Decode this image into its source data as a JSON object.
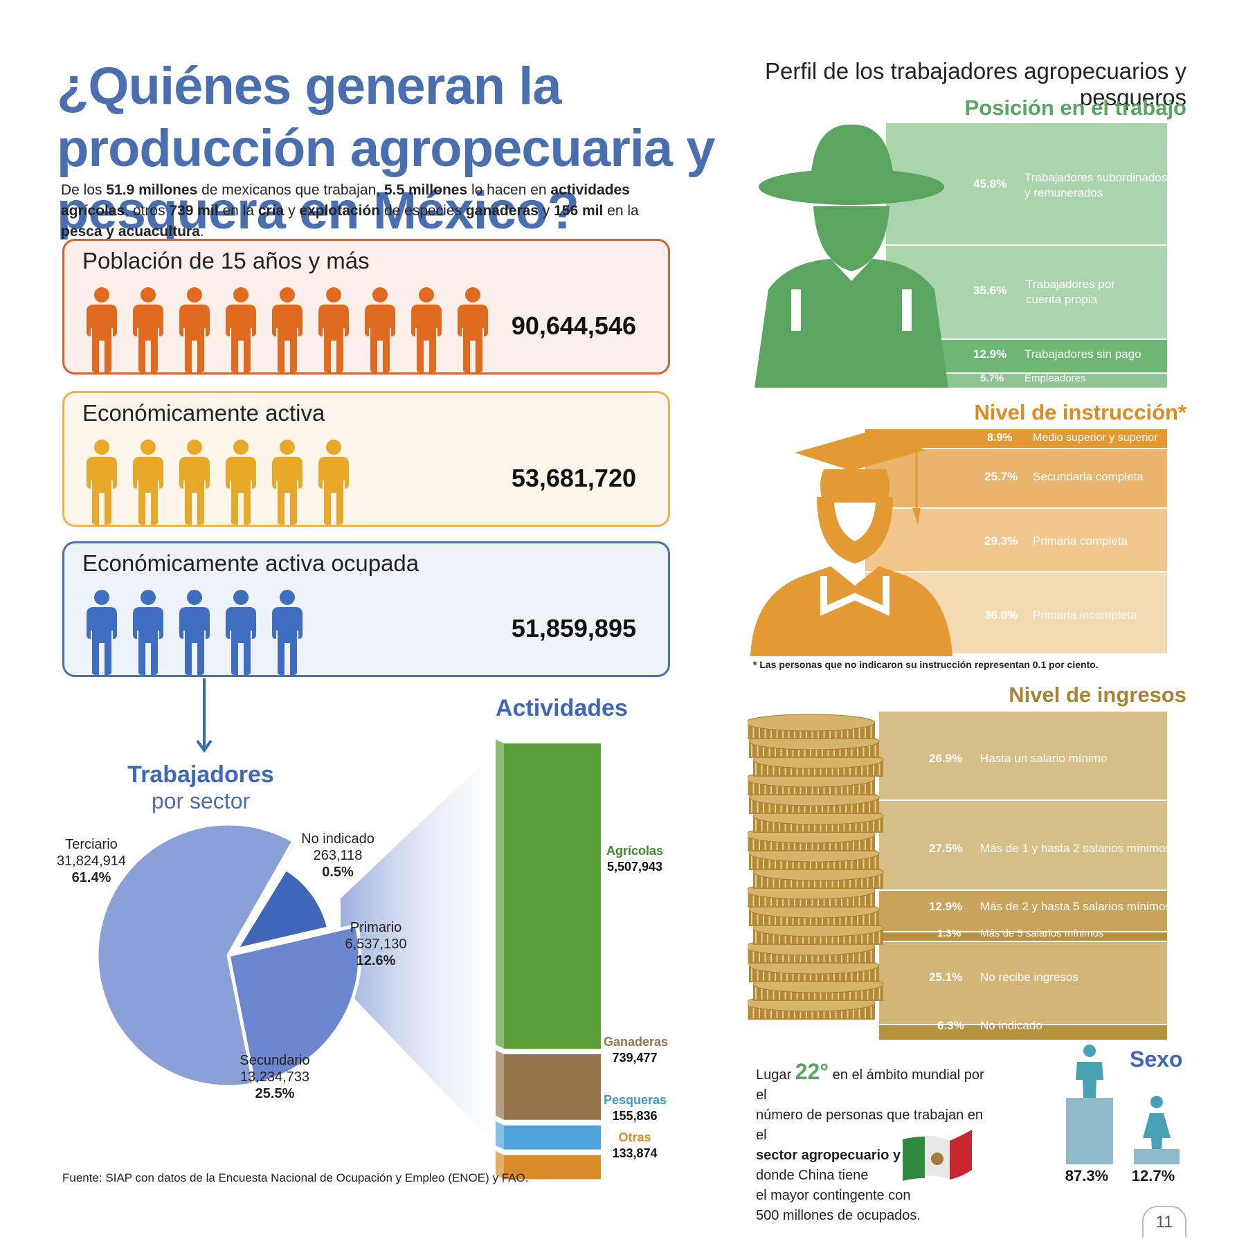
{
  "title": "¿Quiénes generan la producción agropecuaria y pesquera en México?",
  "intro": {
    "p1": "De los ",
    "b1": "51.9 millones",
    "p2": " de mexicanos que trabajan, ",
    "b2": "5.5 millones",
    "p3": " lo hacen en ",
    "b3": "actividades agrícolas",
    "p4": ", otros ",
    "b4": "739 mil",
    "p5": " en la ",
    "b5": "cría",
    "p6": " y ",
    "b6": "explotación",
    "p7": " de especies ",
    "b7": "ganaderas",
    "p8": " y ",
    "b8": "156 mil",
    "p9": " en la ",
    "b9": "pesca y acuacultura",
    "p10": "."
  },
  "population": [
    {
      "label": "Población de 15 años y más",
      "value": "90,644,546",
      "icons": 9,
      "color": "#e06a20"
    },
    {
      "label": "Económicamente activa",
      "value": "53,681,720",
      "icons": 6,
      "color": "#e8a92a"
    },
    {
      "label": "Económicamente activa ocupada",
      "value": "51,859,895",
      "icons": 5,
      "color": "#3f6dbf"
    }
  ],
  "sector_title": {
    "line1": "Trabajadores",
    "line2": "por sector"
  },
  "activities_title": "Actividades",
  "chart_data": [
    {
      "type": "pie",
      "title": "Trabajadores por sector",
      "categories": [
        "Terciario",
        "Secundario",
        "Primario",
        "No indicado"
      ],
      "values": [
        31824914,
        13234733,
        6537130,
        263118
      ],
      "value_labels": [
        "31,824,914",
        "13,234,733",
        "6,537,130",
        "263,118"
      ],
      "percent_labels": [
        "61.4%",
        "25.5%",
        "12.6%",
        "0.5%"
      ],
      "colors": [
        "#8aa0d6",
        "#6b86cf",
        "#3f66b8",
        "#c9d3ec"
      ]
    },
    {
      "type": "bar",
      "title": "Actividades",
      "categories": [
        "Agrícolas",
        "Ganaderas",
        "Pesqueras",
        "Otras"
      ],
      "values": [
        5507943,
        739477,
        155836,
        133874
      ],
      "value_labels": [
        "5,507,943",
        "739,477",
        "155,836",
        "133,874"
      ],
      "colors": [
        "#5a9e3a",
        "#94734a",
        "#4fa3d8",
        "#d98c2a"
      ]
    },
    {
      "type": "bar",
      "title": "Posición en el trabajo",
      "categories": [
        "Trabajadores subordinados y remunerados",
        "Trabajadores por cuenta propia",
        "Trabajadores sin pago",
        "Empleadores"
      ],
      "values": [
        45.8,
        35.6,
        12.9,
        5.7
      ],
      "percent_labels": [
        "45.8%",
        "35.6%",
        "12.9%",
        "5.7%"
      ]
    },
    {
      "type": "bar",
      "title": "Nivel de instrucción*",
      "categories": [
        "Medio superior y superior",
        "Secundaria completa",
        "Primaria completa",
        "Primaria incompleta"
      ],
      "values": [
        8.9,
        25.7,
        29.3,
        36.0
      ],
      "percent_labels": [
        "8.9%",
        "25.7%",
        "29.3%",
        "36.0%"
      ]
    },
    {
      "type": "bar",
      "title": "Nivel de ingresos",
      "categories": [
        "Hasta un salario mínimo",
        "Más de 1 y hasta 2 salarios mínimos",
        "Más de 2 y hasta 5 salarios mínimos",
        "Más de 5 salarios mínimos",
        "No recibe ingresos",
        "No indicado"
      ],
      "values": [
        26.9,
        27.5,
        12.9,
        1.3,
        25.1,
        6.3
      ],
      "percent_labels": [
        "26.9%",
        "27.5%",
        "12.9%",
        "1.3%",
        "25.1%",
        "6.3%"
      ]
    },
    {
      "type": "bar",
      "title": "Sexo",
      "categories": [
        "Hombres",
        "Mujeres"
      ],
      "values": [
        87.3,
        12.7
      ],
      "percent_labels": [
        "87.3%",
        "12.7%"
      ]
    }
  ],
  "right": {
    "perfil_title": "Perfil de los trabajadores agropecuarios y pesqueros",
    "posicion_title": "Posición en el trabajo",
    "posicion_line1": "Trabajadores subordinados",
    "posicion_line2": "y remunerados",
    "cuenta_line1": "Trabajadores por",
    "cuenta_line2": "cuenta propia",
    "instruccion_title": "Nivel de instrucción*",
    "instruccion_note": "* Las personas que no indicaron su instrucción representan 0.1 por ciento.",
    "ingresos_title": "Nivel de ingresos",
    "sexo_title": "Sexo",
    "colors": {
      "green": "#5aa660",
      "orange": "#e39a32",
      "gold": "#c9a35a"
    }
  },
  "lugar": {
    "t1": "Lugar ",
    "num": "22°",
    "t2": " en el ámbito mundial por el",
    "t3": "número de personas que trabajan en el",
    "b1": "sector agropecuario y pesquero",
    "t4": ",",
    "t5": "donde China tiene",
    "t6": "el mayor contingente con",
    "t7": "500 millones de ocupados."
  },
  "source": "Fuente: SIAP con datos de la Encuesta Nacional de Ocupación y Empleo (ENOE) y FAO.",
  "page_number": "11"
}
